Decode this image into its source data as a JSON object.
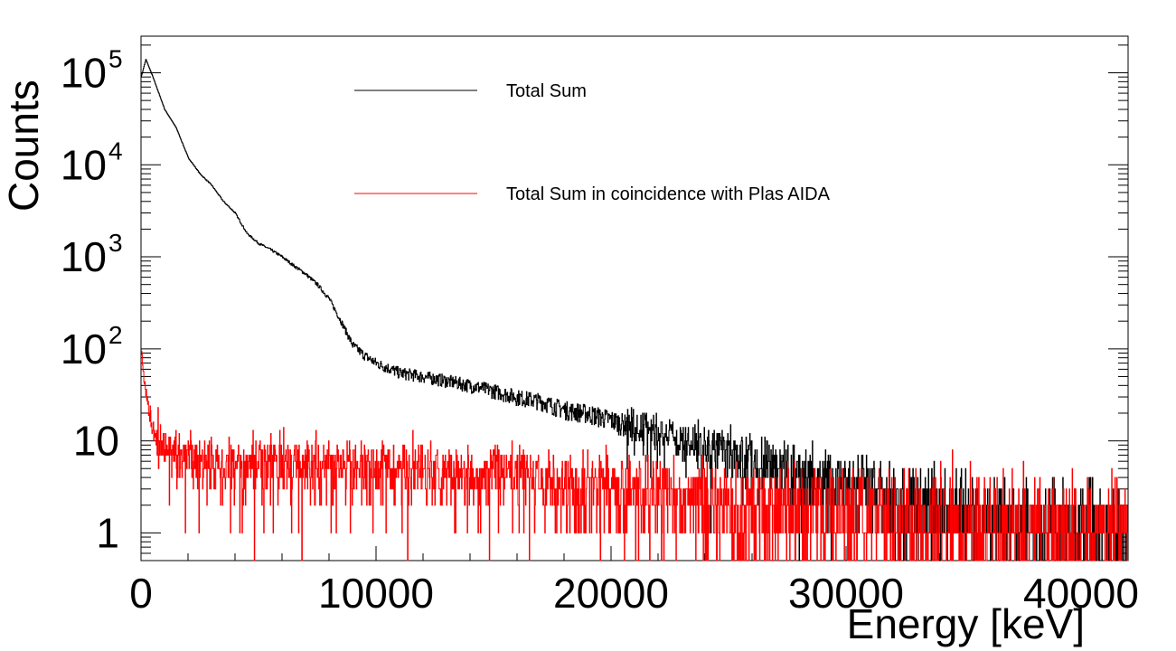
{
  "chart_data": {
    "type": "line",
    "title": "",
    "xlabel": "Energy [keV]",
    "ylabel": "Counts",
    "xlim": [
      0,
      42000
    ],
    "ylim": [
      0.5,
      250000
    ],
    "yscale": "log",
    "grid": false,
    "legend_position": "top-center",
    "x_ticks": [
      {
        "value": 0,
        "label": "0"
      },
      {
        "value": 10000,
        "label": "10000"
      },
      {
        "value": 20000,
        "label": "20000"
      },
      {
        "value": 30000,
        "label": "30000"
      },
      {
        "value": 40000,
        "label": "40000"
      }
    ],
    "y_ticks": [
      {
        "value": 1,
        "label": "1"
      },
      {
        "value": 10,
        "label": "10"
      },
      {
        "value": 100,
        "label": "10",
        "exponent": "2"
      },
      {
        "value": 1000,
        "label": "10",
        "exponent": "3"
      },
      {
        "value": 10000,
        "label": "10",
        "exponent": "4"
      },
      {
        "value": 100000,
        "label": "10",
        "exponent": "5"
      }
    ],
    "series": [
      {
        "name": "Total Sum",
        "color": "#000000",
        "x": [
          0,
          200,
          500,
          1000,
          1500,
          2000,
          2500,
          3000,
          3500,
          4000,
          4500,
          5000,
          5500,
          6000,
          6500,
          7000,
          7500,
          8000,
          8500,
          9000,
          9500,
          10000,
          11000,
          12000,
          13000,
          14000,
          15000,
          16000,
          17000,
          18000,
          19000,
          20000,
          21000,
          22000,
          23000,
          24000,
          25000,
          26000,
          27000,
          28000,
          29000,
          30000,
          31000,
          32000,
          33000,
          34000,
          35000,
          36000,
          37000,
          38000,
          39000,
          40000,
          41000,
          42000
        ],
        "values": [
          90000,
          140000,
          90000,
          40000,
          25000,
          12000,
          8000,
          6000,
          4000,
          3000,
          1800,
          1400,
          1200,
          1000,
          800,
          650,
          500,
          350,
          200,
          110,
          85,
          70,
          55,
          50,
          45,
          40,
          35,
          30,
          27,
          22,
          20,
          17,
          14,
          12,
          10,
          9,
          8,
          6,
          5,
          4.5,
          3.8,
          3.2,
          2.8,
          2.4,
          2.1,
          1.9,
          1.7,
          1.5,
          1.4,
          1.3,
          1.2,
          1.1,
          1.0,
          1.0
        ]
      },
      {
        "name": "Total Sum in coincidence with Plas AIDA",
        "color": "#ff0000",
        "x": [
          0,
          100,
          200,
          300,
          400,
          500,
          700,
          1000,
          1500,
          2000,
          3000,
          4000,
          5000,
          6000,
          8000,
          10000,
          12000,
          14000,
          16000,
          18000,
          20000,
          22000,
          24000,
          26000,
          28000,
          30000,
          32000,
          34000,
          36000,
          38000,
          40000,
          42000
        ],
        "values": [
          100,
          55,
          35,
          25,
          18,
          14,
          11,
          9,
          7,
          6.5,
          6,
          6,
          5.8,
          5.6,
          5.4,
          5.2,
          5,
          4.8,
          4.2,
          3.6,
          3.2,
          2.8,
          2.4,
          2.1,
          1.9,
          1.7,
          1.5,
          1.4,
          1.3,
          1.2,
          1.1,
          1.0
        ]
      }
    ]
  }
}
